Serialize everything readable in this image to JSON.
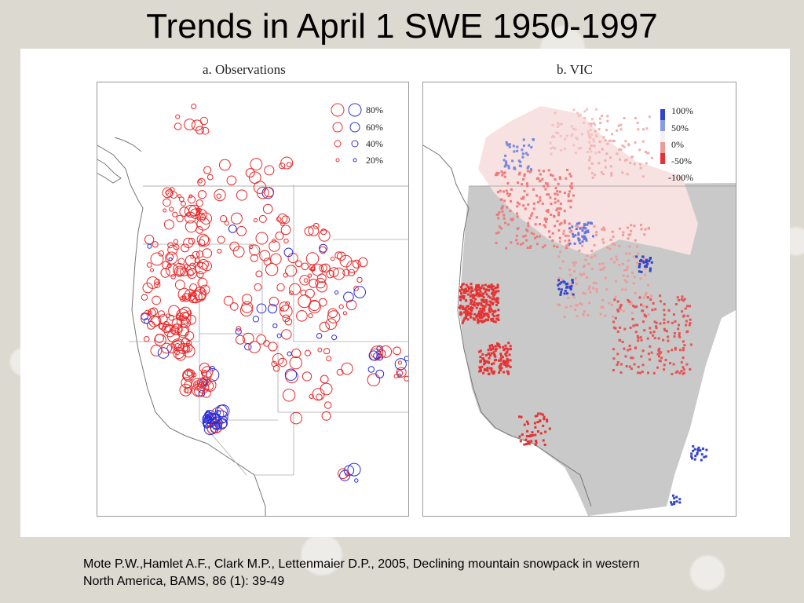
{
  "slide": {
    "title": "Trends in April 1 SWE 1950-1997",
    "citation_line1": "Mote P.W.,Hamlet A.F., Clark M.P., Lettenmaier D.P., 2005, Declining mountain snowpack in western",
    "citation_line2": "North America, BAMS, 86 (1): 39-49"
  },
  "panel_a": {
    "title": "a. Observations",
    "legend": [
      "80%",
      "60%",
      "40%",
      "20%"
    ]
  },
  "panel_b": {
    "title": "b. VIC",
    "legend": [
      "100%",
      "50%",
      "0%",
      "-50%",
      "-100%"
    ]
  },
  "colors": {
    "decrease": "#e8282a",
    "increase": "#2a2ad8",
    "land_gray": "#c8c8c8"
  }
}
